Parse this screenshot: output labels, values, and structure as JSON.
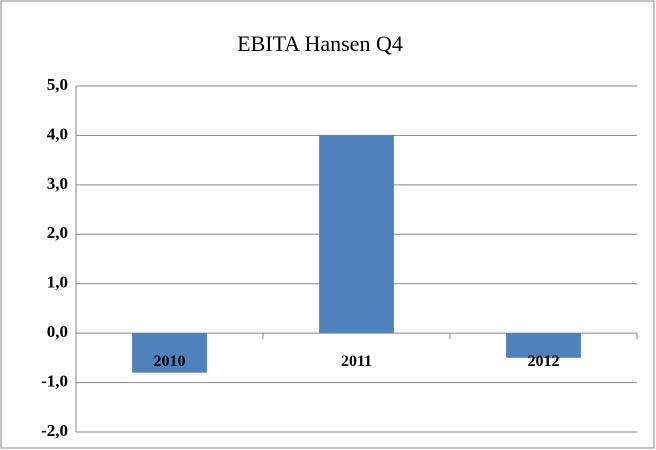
{
  "chart_data": {
    "type": "bar",
    "title": "EBITA Hansen Q4",
    "categories": [
      "2010",
      "2011",
      "2012"
    ],
    "values": [
      -0.8,
      4.0,
      -0.5
    ],
    "color": "#4f81bd",
    "ylim": [
      -2,
      5
    ],
    "yticks": [
      {
        "value": -2,
        "label": "-2,0"
      },
      {
        "value": -1,
        "label": "-1,0"
      },
      {
        "value": 0,
        "label": "0,0"
      },
      {
        "value": 1,
        "label": "1,0"
      },
      {
        "value": 2,
        "label": "2,0"
      },
      {
        "value": 3,
        "label": "3,0"
      },
      {
        "value": 4,
        "label": "4,0"
      },
      {
        "value": 5,
        "label": "5,0"
      }
    ],
    "grid": true
  }
}
